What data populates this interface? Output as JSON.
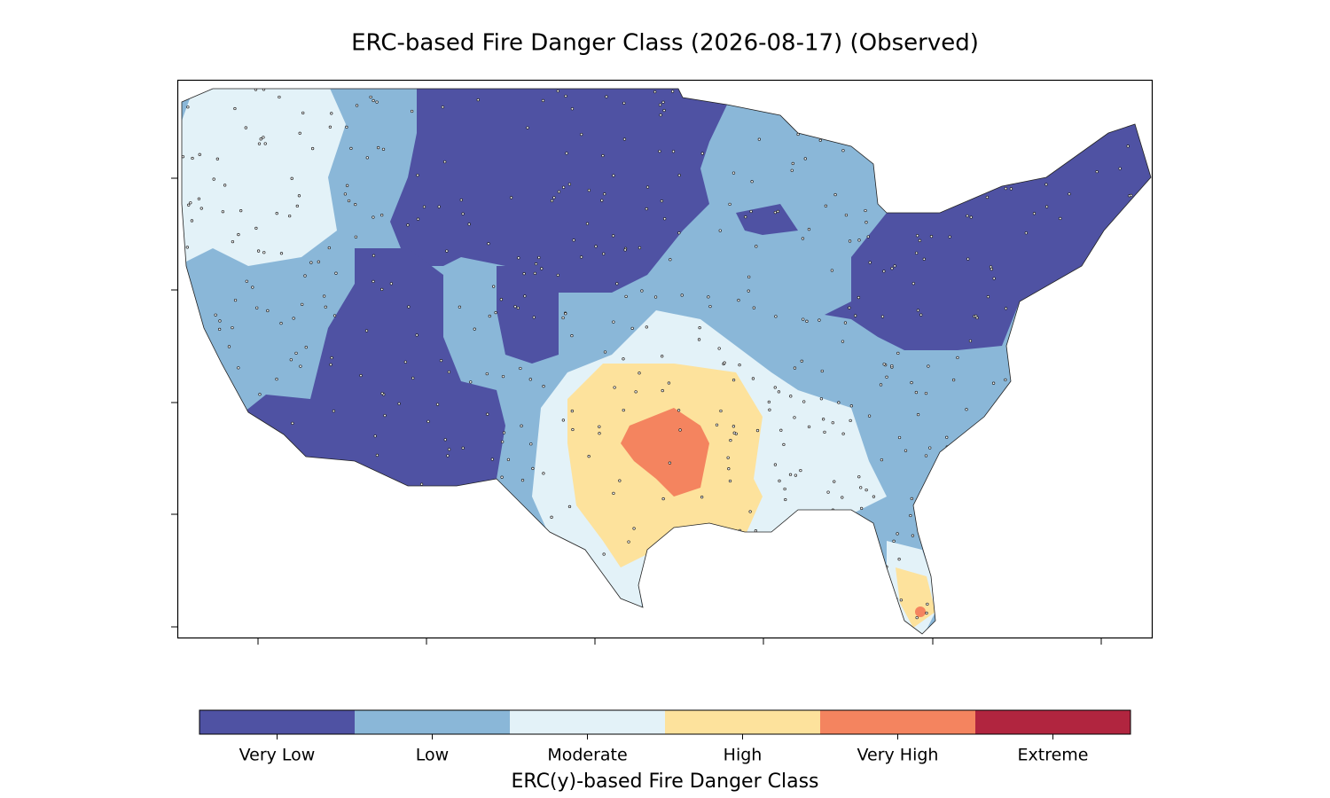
{
  "title": "ERC-based Fire Danger Class (2026-08-17) (Observed)",
  "colorbar": {
    "label": "ERC(y)-based Fire Danger Class",
    "classes": [
      {
        "name": "Very Low",
        "color": "#4f52a3"
      },
      {
        "name": "Low",
        "color": "#8ab7d8"
      },
      {
        "name": "Moderate",
        "color": "#e3f2f8"
      },
      {
        "name": "High",
        "color": "#fde29c"
      },
      {
        "name": "Very High",
        "color": "#f4845f"
      },
      {
        "name": "Extreme",
        "color": "#b1253f"
      }
    ]
  }
}
